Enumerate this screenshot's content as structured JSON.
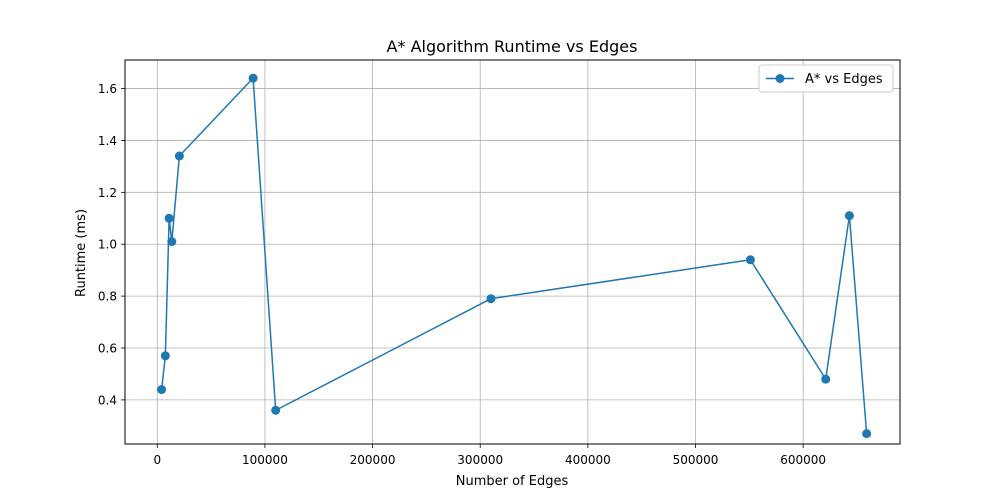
{
  "chart_data": {
    "type": "line",
    "title": "A* Algorithm Runtime vs Edges",
    "xlabel": "Number of Edges",
    "ylabel": "Runtime (ms)",
    "xlim": [
      -30000,
      690000
    ],
    "ylim": [
      0.23,
      1.71
    ],
    "xticks": [
      0,
      100000,
      200000,
      300000,
      400000,
      500000,
      600000
    ],
    "xtick_labels": [
      "0",
      "100000",
      "200000",
      "300000",
      "400000",
      "500000",
      "600000"
    ],
    "yticks": [
      0.4,
      0.6,
      0.8,
      1.0,
      1.2,
      1.4,
      1.6
    ],
    "ytick_labels": [
      "0.4",
      "0.6",
      "0.8",
      "1.0",
      "1.2",
      "1.4",
      "1.6"
    ],
    "grid": true,
    "legend_position": "top-right",
    "series": [
      {
        "name": "A* vs Edges",
        "color": "#1f77b4",
        "marker": "circle",
        "x": [
          4000,
          7500,
          11000,
          13500,
          20500,
          89000,
          110000,
          310000,
          551000,
          621000,
          643000,
          659000
        ],
        "y": [
          0.44,
          0.57,
          1.1,
          1.01,
          1.34,
          1.64,
          0.36,
          0.79,
          0.94,
          0.48,
          1.11,
          0.27
        ]
      }
    ]
  }
}
